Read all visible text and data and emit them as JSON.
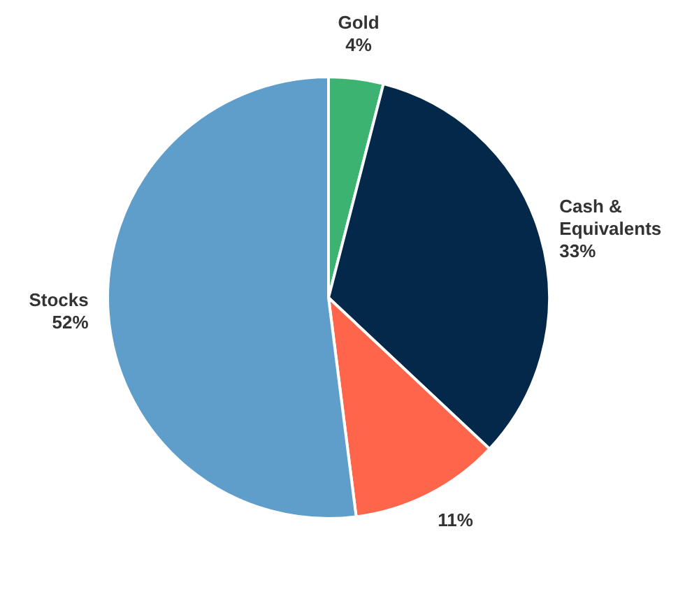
{
  "chart_data": {
    "type": "pie",
    "categories": [
      "Gold",
      "Cash & Equivalents",
      null,
      "Stocks"
    ],
    "values": [
      4,
      33,
      11,
      52
    ],
    "colors": [
      "#3cb371",
      "#03284a",
      "#fe654b",
      "#5f9dca"
    ],
    "value_labels": [
      "4%",
      "33%",
      "11%",
      "52%"
    ]
  }
}
